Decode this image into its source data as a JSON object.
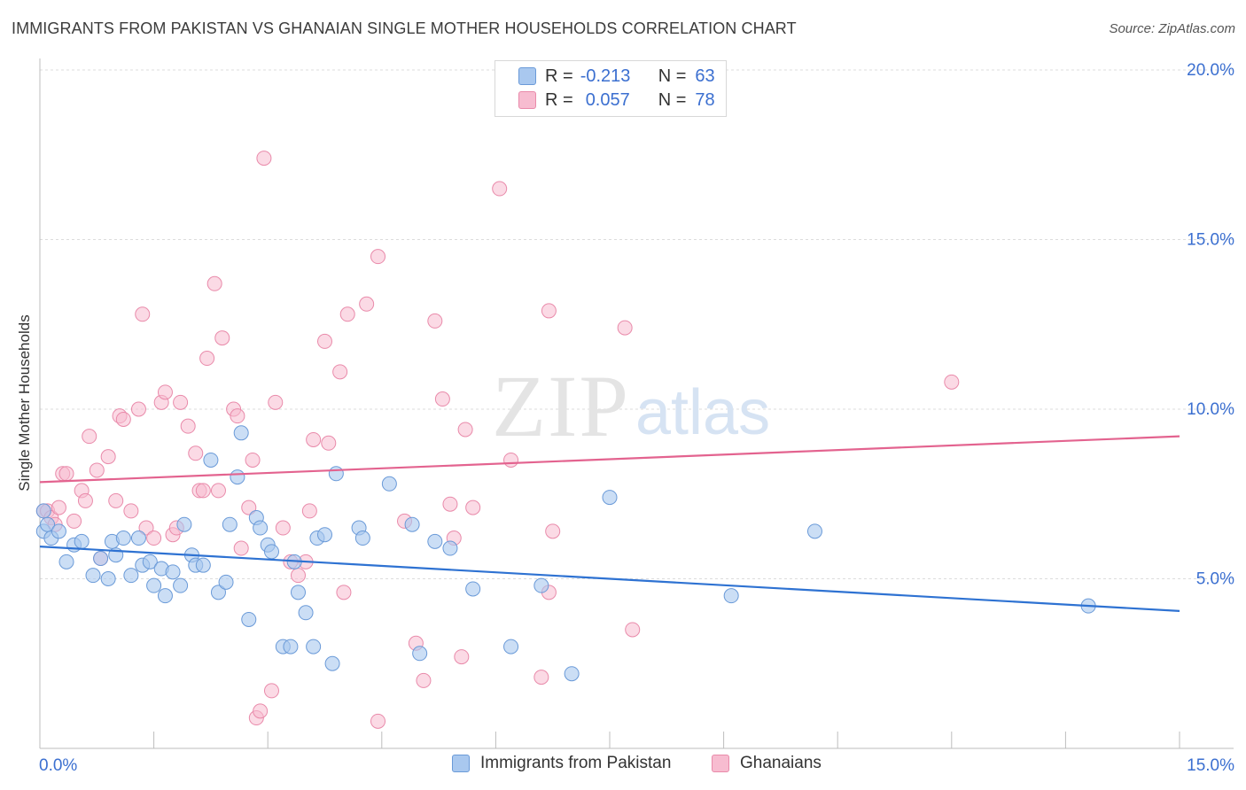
{
  "title": "IMMIGRANTS FROM PAKISTAN VS GHANAIAN SINGLE MOTHER HOUSEHOLDS CORRELATION CHART",
  "source": "Source: ZipAtlas.com",
  "watermark": {
    "zip": "ZIP",
    "atlas": "atlas"
  },
  "legend": {
    "rows": [
      {
        "r_label": "R =",
        "r_value": "-0.213",
        "n_label": "N =",
        "n_value": "63"
      },
      {
        "r_label": "R =",
        "r_value": "0.057",
        "n_label": "N =",
        "n_value": "78"
      }
    ]
  },
  "bottom_legend": {
    "series1": "Immigrants from Pakistan",
    "series2": "Ghanaians"
  },
  "colors": {
    "blue_fill": "#a9c8ef",
    "blue_stroke": "#6a9ad8",
    "blue_line": "#2e72d2",
    "pink_fill": "#f7bcd0",
    "pink_stroke": "#e98aaa",
    "pink_line": "#e3638f",
    "tick_label": "#3b6fd0",
    "grid": "#dcdcdc"
  },
  "chart_data": {
    "type": "scatter",
    "title": "IMMIGRANTS FROM PAKISTAN VS GHANAIAN SINGLE MOTHER HOUSEHOLDS CORRELATION CHART",
    "xlabel": "",
    "ylabel": "Single Mother Households",
    "xlim": [
      0,
      15
    ],
    "ylim": [
      0,
      20
    ],
    "x_tick_labels": [
      "0.0%",
      "15.0%"
    ],
    "y_tick_labels": [
      "5.0%",
      "10.0%",
      "15.0%",
      "20.0%"
    ],
    "y_ticks": [
      5,
      10,
      15,
      20
    ],
    "grid": true,
    "series": [
      {
        "name": "Immigrants from Pakistan",
        "color": "#a9c8ef",
        "trend": {
          "x": [
            0,
            15
          ],
          "y": [
            5.95,
            4.05
          ]
        },
        "points": [
          [
            0.05,
            7.0
          ],
          [
            0.05,
            6.4
          ],
          [
            0.1,
            6.6
          ],
          [
            0.15,
            6.2
          ],
          [
            0.25,
            6.4
          ],
          [
            0.35,
            5.5
          ],
          [
            0.45,
            6.0
          ],
          [
            0.55,
            6.1
          ],
          [
            0.7,
            5.1
          ],
          [
            0.8,
            5.6
          ],
          [
            0.9,
            5.0
          ],
          [
            0.95,
            6.1
          ],
          [
            1.0,
            5.7
          ],
          [
            1.1,
            6.2
          ],
          [
            1.2,
            5.1
          ],
          [
            1.3,
            6.2
          ],
          [
            1.35,
            5.4
          ],
          [
            1.45,
            5.5
          ],
          [
            1.5,
            4.8
          ],
          [
            1.6,
            5.3
          ],
          [
            1.65,
            4.5
          ],
          [
            1.75,
            5.2
          ],
          [
            1.85,
            4.8
          ],
          [
            1.9,
            6.6
          ],
          [
            2.0,
            5.7
          ],
          [
            2.05,
            5.4
          ],
          [
            2.15,
            5.4
          ],
          [
            2.25,
            8.5
          ],
          [
            2.35,
            4.6
          ],
          [
            2.45,
            4.9
          ],
          [
            2.5,
            6.6
          ],
          [
            2.6,
            8.0
          ],
          [
            2.65,
            9.3
          ],
          [
            2.75,
            3.8
          ],
          [
            2.85,
            6.8
          ],
          [
            2.9,
            6.5
          ],
          [
            3.0,
            6.0
          ],
          [
            3.05,
            5.8
          ],
          [
            3.2,
            3.0
          ],
          [
            3.3,
            3.0
          ],
          [
            3.35,
            5.5
          ],
          [
            3.4,
            4.6
          ],
          [
            3.5,
            4.0
          ],
          [
            3.6,
            3.0
          ],
          [
            3.65,
            6.2
          ],
          [
            3.75,
            6.3
          ],
          [
            3.85,
            2.5
          ],
          [
            3.9,
            8.1
          ],
          [
            4.2,
            6.5
          ],
          [
            4.25,
            6.2
          ],
          [
            4.6,
            7.8
          ],
          [
            4.9,
            6.6
          ],
          [
            5.0,
            2.8
          ],
          [
            5.2,
            6.1
          ],
          [
            5.4,
            5.9
          ],
          [
            5.7,
            4.7
          ],
          [
            6.2,
            3.0
          ],
          [
            6.6,
            4.8
          ],
          [
            7.0,
            2.2
          ],
          [
            7.5,
            7.4
          ],
          [
            9.1,
            4.5
          ],
          [
            10.2,
            6.4
          ],
          [
            13.8,
            4.2
          ]
        ]
      },
      {
        "name": "Ghanaians",
        "color": "#f7bcd0",
        "trend": {
          "x": [
            0,
            15
          ],
          "y": [
            7.85,
            9.2
          ]
        },
        "points": [
          [
            0.05,
            7.0
          ],
          [
            0.1,
            7.0
          ],
          [
            0.15,
            6.8
          ],
          [
            0.2,
            6.6
          ],
          [
            0.25,
            7.1
          ],
          [
            0.3,
            8.1
          ],
          [
            0.35,
            8.1
          ],
          [
            0.45,
            6.7
          ],
          [
            0.55,
            7.6
          ],
          [
            0.6,
            7.3
          ],
          [
            0.65,
            9.2
          ],
          [
            0.75,
            8.2
          ],
          [
            0.8,
            5.6
          ],
          [
            0.9,
            8.6
          ],
          [
            1.0,
            7.3
          ],
          [
            1.05,
            9.8
          ],
          [
            1.1,
            9.7
          ],
          [
            1.2,
            7.0
          ],
          [
            1.3,
            10.0
          ],
          [
            1.35,
            12.8
          ],
          [
            1.4,
            6.5
          ],
          [
            1.5,
            6.2
          ],
          [
            1.6,
            10.2
          ],
          [
            1.65,
            10.5
          ],
          [
            1.75,
            6.3
          ],
          [
            1.8,
            6.5
          ],
          [
            1.85,
            10.2
          ],
          [
            1.95,
            9.5
          ],
          [
            2.05,
            8.7
          ],
          [
            2.1,
            7.6
          ],
          [
            2.15,
            7.6
          ],
          [
            2.2,
            11.5
          ],
          [
            2.3,
            13.7
          ],
          [
            2.35,
            7.6
          ],
          [
            2.4,
            12.1
          ],
          [
            2.55,
            10.0
          ],
          [
            2.6,
            9.8
          ],
          [
            2.65,
            5.9
          ],
          [
            2.75,
            7.1
          ],
          [
            2.8,
            8.5
          ],
          [
            2.85,
            0.9
          ],
          [
            2.9,
            1.1
          ],
          [
            2.95,
            17.4
          ],
          [
            3.05,
            1.7
          ],
          [
            3.1,
            10.2
          ],
          [
            3.2,
            6.5
          ],
          [
            3.3,
            5.5
          ],
          [
            3.4,
            5.1
          ],
          [
            3.5,
            5.5
          ],
          [
            3.55,
            7.0
          ],
          [
            3.6,
            9.1
          ],
          [
            3.75,
            12.0
          ],
          [
            3.8,
            9.0
          ],
          [
            3.95,
            11.1
          ],
          [
            4.0,
            4.6
          ],
          [
            4.05,
            12.8
          ],
          [
            4.3,
            13.1
          ],
          [
            4.45,
            14.5
          ],
          [
            4.45,
            0.8
          ],
          [
            4.8,
            6.7
          ],
          [
            4.95,
            3.1
          ],
          [
            5.05,
            2.0
          ],
          [
            5.2,
            12.6
          ],
          [
            5.3,
            10.3
          ],
          [
            5.4,
            7.2
          ],
          [
            5.45,
            6.2
          ],
          [
            5.55,
            2.7
          ],
          [
            5.6,
            9.4
          ],
          [
            5.7,
            7.1
          ],
          [
            6.05,
            16.5
          ],
          [
            6.2,
            8.5
          ],
          [
            6.6,
            2.1
          ],
          [
            6.7,
            12.9
          ],
          [
            6.7,
            4.6
          ],
          [
            6.75,
            6.4
          ],
          [
            7.7,
            12.4
          ],
          [
            7.8,
            3.5
          ],
          [
            12.0,
            10.8
          ]
        ]
      }
    ]
  }
}
